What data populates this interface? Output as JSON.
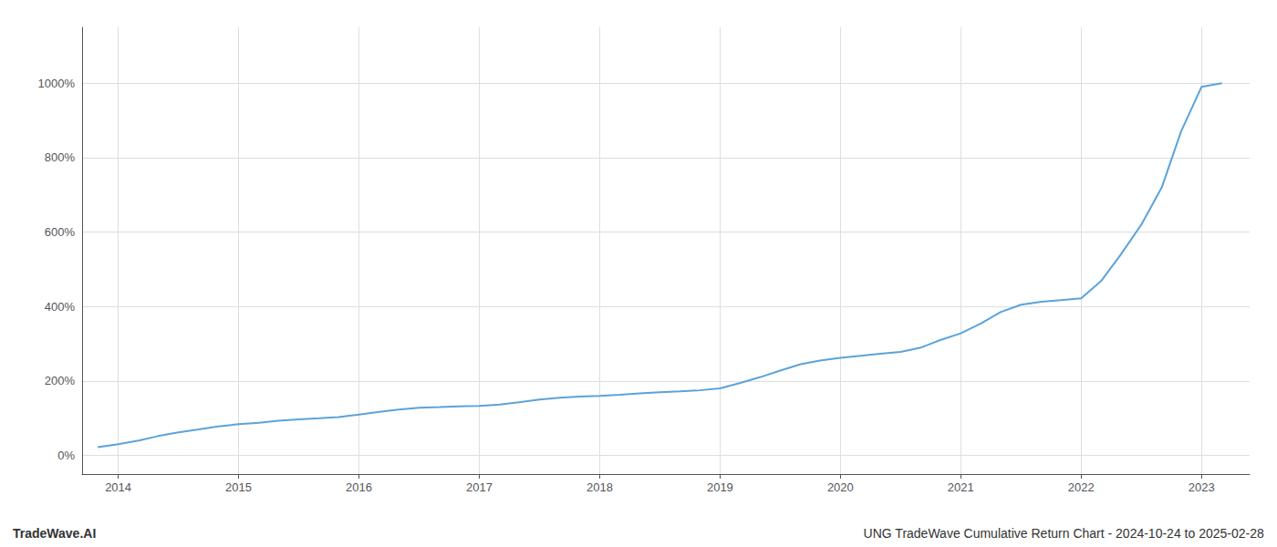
{
  "chart_data": {
    "type": "line",
    "x": [
      2013.83,
      2014.0,
      2014.17,
      2014.33,
      2014.5,
      2014.67,
      2014.83,
      2015.0,
      2015.17,
      2015.33,
      2015.5,
      2015.67,
      2015.83,
      2016.0,
      2016.17,
      2016.33,
      2016.5,
      2016.67,
      2016.83,
      2017.0,
      2017.17,
      2017.33,
      2017.5,
      2017.67,
      2017.83,
      2018.0,
      2018.17,
      2018.33,
      2018.5,
      2018.67,
      2018.83,
      2019.0,
      2019.17,
      2019.33,
      2019.5,
      2019.67,
      2019.83,
      2020.0,
      2020.17,
      2020.33,
      2020.5,
      2020.67,
      2020.83,
      2021.0,
      2021.17,
      2021.33,
      2021.5,
      2021.67,
      2021.83,
      2022.0,
      2022.17,
      2022.33,
      2022.5,
      2022.67,
      2022.83,
      2023.0,
      2023.17
    ],
    "values": [
      22,
      30,
      40,
      52,
      62,
      70,
      78,
      84,
      88,
      93,
      97,
      100,
      103,
      110,
      117,
      123,
      128,
      130,
      132,
      133,
      137,
      143,
      150,
      155,
      158,
      160,
      163,
      167,
      170,
      172,
      175,
      180,
      195,
      210,
      228,
      245,
      255,
      262,
      268,
      273,
      278,
      290,
      310,
      328,
      355,
      385,
      405,
      413,
      417,
      422,
      470,
      540,
      620,
      720,
      870,
      990,
      1000
    ],
    "color": "#5ba3d9",
    "xlim": [
      2013.7,
      2023.4
    ],
    "xticks": [
      2014,
      2015,
      2016,
      2017,
      2018,
      2019,
      2020,
      2021,
      2022,
      2023
    ],
    "ylim": [
      -50,
      1150
    ],
    "yticks": [
      {
        "value": 0,
        "label": "0%"
      },
      {
        "value": 200,
        "label": "200%"
      },
      {
        "value": 400,
        "label": "400%"
      },
      {
        "value": 600,
        "label": "600%"
      },
      {
        "value": 800,
        "label": "800%"
      },
      {
        "value": 1000,
        "label": "1000%"
      }
    ],
    "grid": true,
    "annotations": [
      "TradeWave.AI",
      "UNG TradeWave Cumulative Return Chart - 2024-10-24 to 2025-02-28"
    ]
  }
}
